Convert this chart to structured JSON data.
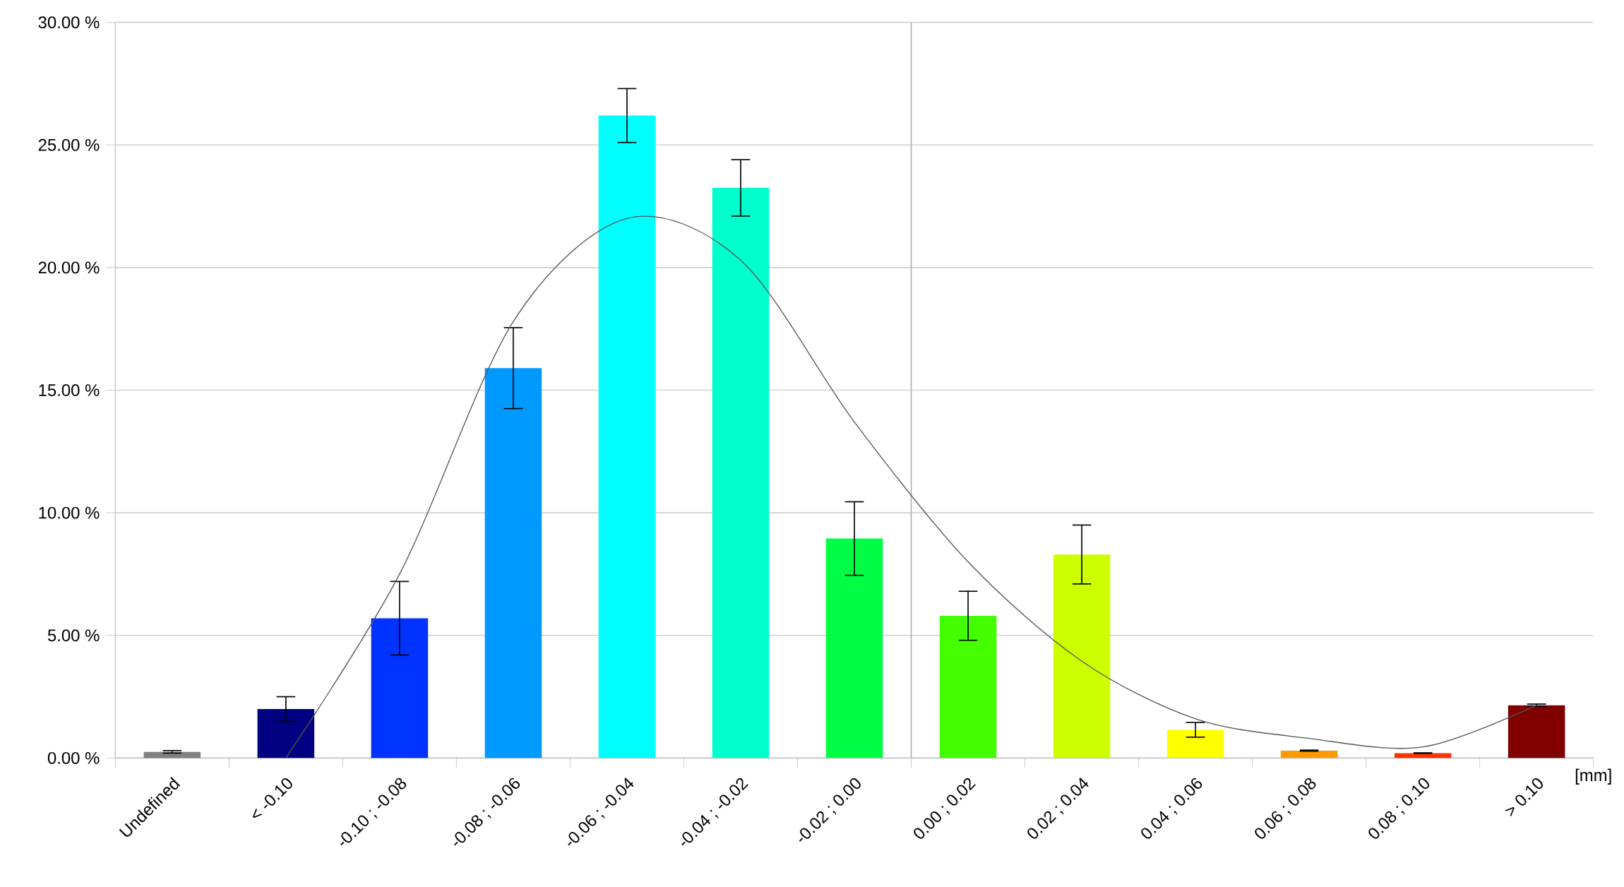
{
  "chart_data": {
    "type": "bar",
    "xlabel": "[mm]",
    "categories": [
      "Undefined",
      "< -0.10",
      "-0.10 ; -0.08",
      "-0.08 ; -0.06",
      "-0.06 ; -0.04",
      "-0.04 ; -0.02",
      "-0.02 ; 0.00",
      "0.00 ; 0.02",
      "0.02 ; 0.04",
      "0.04 ; 0.06",
      "0.06 ; 0.08",
      "0.08 ; 0.10",
      "> 0.10"
    ],
    "series": [
      {
        "values": [
          0.25,
          2.0,
          5.7,
          15.9,
          26.2,
          23.25,
          8.95,
          5.8,
          8.3,
          1.15,
          0.3,
          0.2,
          2.15
        ],
        "errors": [
          0.05,
          0.5,
          1.5,
          1.65,
          1.1,
          1.15,
          1.5,
          1.0,
          1.2,
          0.3,
          0.02,
          0.01,
          0.05
        ],
        "colors": [
          "#808080",
          "#000080",
          "#0033ff",
          "#0099ff",
          "#00ffff",
          "#00ffcc",
          "#00ff44",
          "#44ff00",
          "#ccff00",
          "#ffff00",
          "#ff9900",
          "#ff3300",
          "#800000"
        ]
      },
      {
        "type": "line",
        "color": "#555555",
        "x": [
          "< -0.10",
          "-0.10 ; -0.08",
          "-0.08 ; -0.06",
          "-0.06 ; -0.04",
          "-0.04 ; -0.02",
          "-0.02 ; 0.00",
          "0.00 ; 0.02",
          "0.02 ; 0.04",
          "0.04 ; 0.06",
          "0.06 ; 0.08",
          "0.08 ; 0.10",
          "> 0.10"
        ],
        "values": [
          0.0,
          7.5,
          17.8,
          22.0,
          20.3,
          13.7,
          8.0,
          3.95,
          1.6,
          0.8,
          0.45,
          2.15
        ]
      }
    ],
    "ref_lines": [
      {
        "axis": "x",
        "value": "0.00 ; 0.02",
        "color": "#b0b0b0"
      }
    ],
    "ylim": [
      0,
      30
    ],
    "yticks": [
      {
        "value": 0,
        "label": "0.00 %"
      },
      {
        "value": 5,
        "label": "5.00 %"
      },
      {
        "value": 10,
        "label": "10.00 %"
      },
      {
        "value": 15,
        "label": "15.00 %"
      },
      {
        "value": 20,
        "label": "20.00 %"
      },
      {
        "value": 25,
        "label": "25.00 %"
      },
      {
        "value": 30,
        "label": "30.00 %"
      }
    ],
    "grid": "y",
    "marker": "none"
  }
}
